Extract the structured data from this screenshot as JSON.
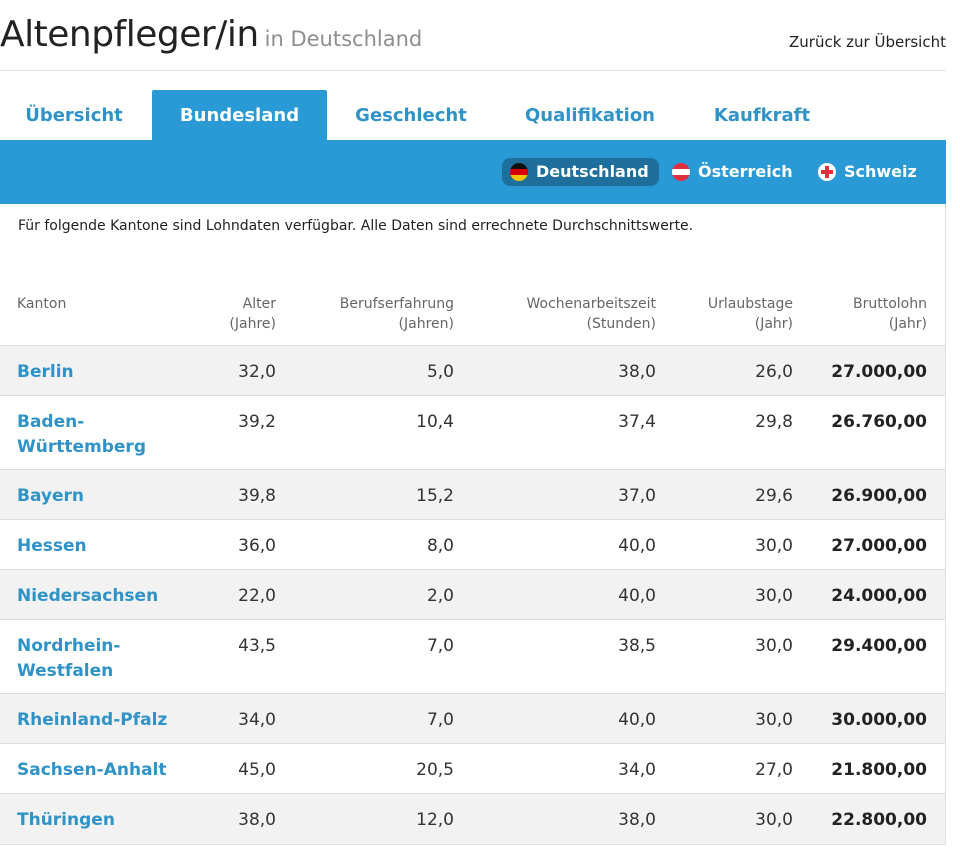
{
  "header": {
    "title": "Altenpfleger/in",
    "subtitle": "in Deutschland",
    "back_link": "Zurück zur Übersicht"
  },
  "tabs": [
    {
      "label": "Übersicht",
      "active": false
    },
    {
      "label": "Bundesland",
      "active": true
    },
    {
      "label": "Geschlecht",
      "active": false
    },
    {
      "label": "Qualifikation",
      "active": false
    },
    {
      "label": "Kaufkraft",
      "active": false
    }
  ],
  "countries": [
    {
      "label": "Deutschland",
      "flag": "germany-flag-icon",
      "active": true
    },
    {
      "label": "Österreich",
      "flag": "austria-flag-icon",
      "active": false
    },
    {
      "label": "Schweiz",
      "flag": "switzerland-flag-icon",
      "active": false
    }
  ],
  "colors": {
    "accent": "#2a9ad6",
    "link": "#2f93c7",
    "active_pill": "#1e6f9c"
  },
  "intro": "Für folgende Kantone sind Lohndaten verfügbar. Alle Daten sind errechnete Durchschnittswerte.",
  "table": {
    "columns": [
      {
        "line1": "Kanton",
        "line2": ""
      },
      {
        "line1": "Alter",
        "line2": "(Jahre)"
      },
      {
        "line1": "Berufserfahrung",
        "line2": "(Jahren)"
      },
      {
        "line1": "Wochenarbeitszeit",
        "line2": "(Stunden)"
      },
      {
        "line1": "Urlaubstage",
        "line2": "(Jahr)"
      },
      {
        "line1": "Bruttolohn",
        "line2": "(Jahr)"
      }
    ],
    "rows": [
      {
        "name": "Berlin",
        "alter": "32,0",
        "erfahrung": "5,0",
        "woche": "38,0",
        "urlaub": "26,0",
        "lohn": "27.000,00"
      },
      {
        "name": "Baden-Württemberg",
        "alter": "39,2",
        "erfahrung": "10,4",
        "woche": "37,4",
        "urlaub": "29,8",
        "lohn": "26.760,00"
      },
      {
        "name": "Bayern",
        "alter": "39,8",
        "erfahrung": "15,2",
        "woche": "37,0",
        "urlaub": "29,6",
        "lohn": "26.900,00"
      },
      {
        "name": "Hessen",
        "alter": "36,0",
        "erfahrung": "8,0",
        "woche": "40,0",
        "urlaub": "30,0",
        "lohn": "27.000,00"
      },
      {
        "name": "Niedersachsen",
        "alter": "22,0",
        "erfahrung": "2,0",
        "woche": "40,0",
        "urlaub": "30,0",
        "lohn": "24.000,00"
      },
      {
        "name": "Nordrhein-Westfalen",
        "alter": "43,5",
        "erfahrung": "7,0",
        "woche": "38,5",
        "urlaub": "30,0",
        "lohn": "29.400,00"
      },
      {
        "name": "Rheinland-Pfalz",
        "alter": "34,0",
        "erfahrung": "7,0",
        "woche": "40,0",
        "urlaub": "30,0",
        "lohn": "30.000,00"
      },
      {
        "name": "Sachsen-Anhalt",
        "alter": "45,0",
        "erfahrung": "20,5",
        "woche": "34,0",
        "urlaub": "27,0",
        "lohn": "21.800,00"
      },
      {
        "name": "Thüringen",
        "alter": "38,0",
        "erfahrung": "12,0",
        "woche": "38,0",
        "urlaub": "30,0",
        "lohn": "22.800,00"
      }
    ]
  }
}
